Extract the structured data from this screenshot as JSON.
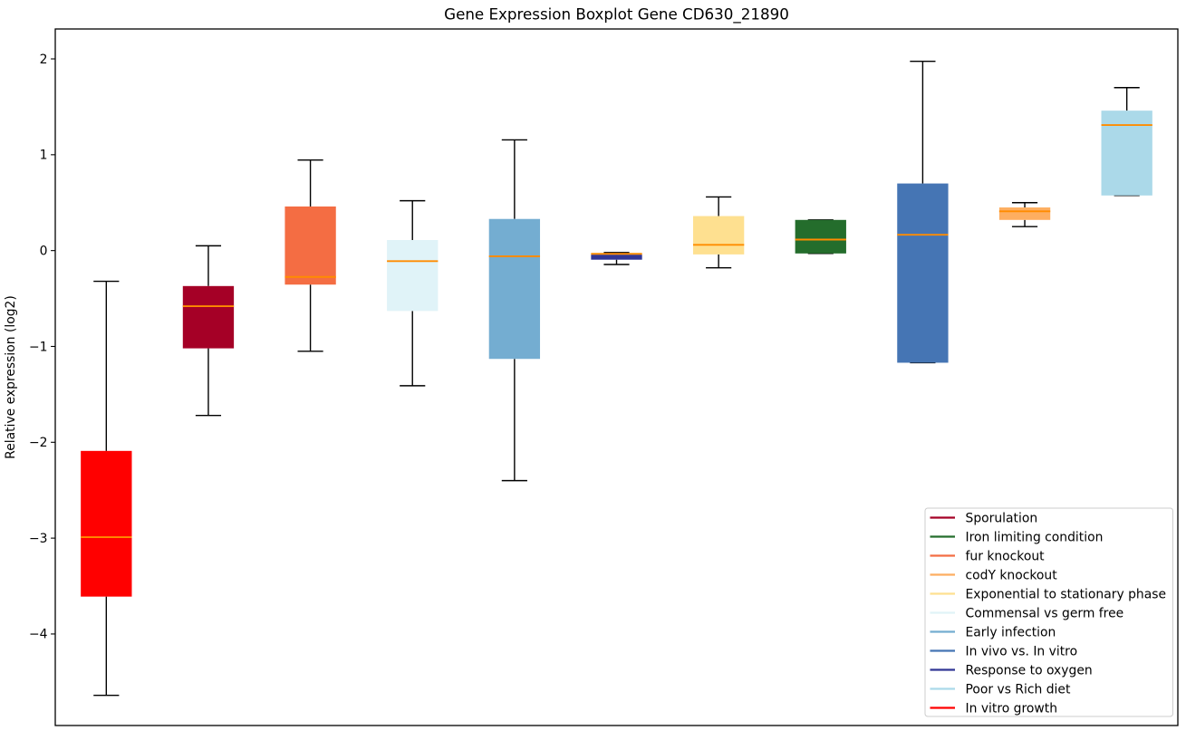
{
  "chart_data": {
    "type": "boxplot",
    "title": "Gene Expression Boxplot Gene CD630_21890",
    "xlabel": "",
    "ylabel": "Relative expression (log2)",
    "ylim": [
      -4.955,
      2.312
    ],
    "grid": false,
    "x_tick_labels": [],
    "yticks": [
      {
        "value": 2,
        "label": "2"
      },
      {
        "value": 1,
        "label": "1"
      },
      {
        "value": 0,
        "label": "0"
      },
      {
        "value": -1,
        "label": "−1"
      },
      {
        "value": -2,
        "label": "−2"
      },
      {
        "value": -3,
        "label": "−3"
      },
      {
        "value": -4,
        "label": "−4"
      }
    ],
    "median_color": "#FF8C00",
    "whisker_color": "#000000",
    "series": [
      {
        "name": "In vitro growth",
        "color": "#FF0000",
        "whislo": -4.64,
        "q1": -3.61,
        "med": -2.99,
        "q3": -2.09,
        "whishi": -0.32
      },
      {
        "name": "Sporulation",
        "color": "#A50026",
        "whislo": -1.72,
        "q1": -1.02,
        "med": -0.58,
        "q3": -0.37,
        "whishi": 0.05
      },
      {
        "name": "fur knockout",
        "color": "#F46D43",
        "whislo": -1.05,
        "q1": -0.355,
        "med": -0.275,
        "q3": 0.46,
        "whishi": 0.945
      },
      {
        "name": "Commensal vs germ free",
        "color": "#E0F3F8",
        "whislo": -1.41,
        "q1": -0.63,
        "med": -0.11,
        "q3": 0.11,
        "whishi": 0.52
      },
      {
        "name": "Early infection",
        "color": "#74ADD1",
        "whislo": -2.4,
        "q1": -1.13,
        "med": -0.06,
        "q3": 0.33,
        "whishi": 1.155
      },
      {
        "name": "Response to oxygen",
        "color": "#313695",
        "whislo": -0.145,
        "q1": -0.095,
        "med": -0.034,
        "q3": -0.042,
        "whishi": -0.02
      },
      {
        "name": "Exponential to stationary phase",
        "color": "#FEE090",
        "whislo": -0.18,
        "q1": -0.04,
        "med": 0.06,
        "q3": 0.36,
        "whishi": 0.56
      },
      {
        "name": "Iron limiting condition",
        "color": "#246D2C",
        "whislo": -0.03,
        "q1": -0.03,
        "med": 0.115,
        "q3": 0.32,
        "whishi": 0.32
      },
      {
        "name": "In vivo vs. In vitro",
        "color": "#4575B4",
        "whislo": -1.17,
        "q1": -1.17,
        "med": 0.165,
        "q3": 0.7,
        "whishi": 1.975
      },
      {
        "name": "codY knockout",
        "color": "#FDAE61",
        "whislo": 0.25,
        "q1": 0.32,
        "med": 0.41,
        "q3": 0.45,
        "whishi": 0.5
      },
      {
        "name": "Poor vs Rich diet",
        "color": "#ABD9E9",
        "whislo": 0.575,
        "q1": 0.575,
        "med": 1.31,
        "q3": 1.46,
        "whishi": 1.7
      }
    ],
    "legend": {
      "position": "lower right",
      "entries": [
        "Sporulation",
        "Iron limiting condition",
        "fur knockout",
        "codY knockout",
        "Exponential to stationary phase",
        "Commensal vs germ free",
        "Early infection",
        "In vivo vs. In vitro",
        "Response to oxygen",
        "Poor vs Rich diet",
        "In vitro growth"
      ]
    }
  }
}
